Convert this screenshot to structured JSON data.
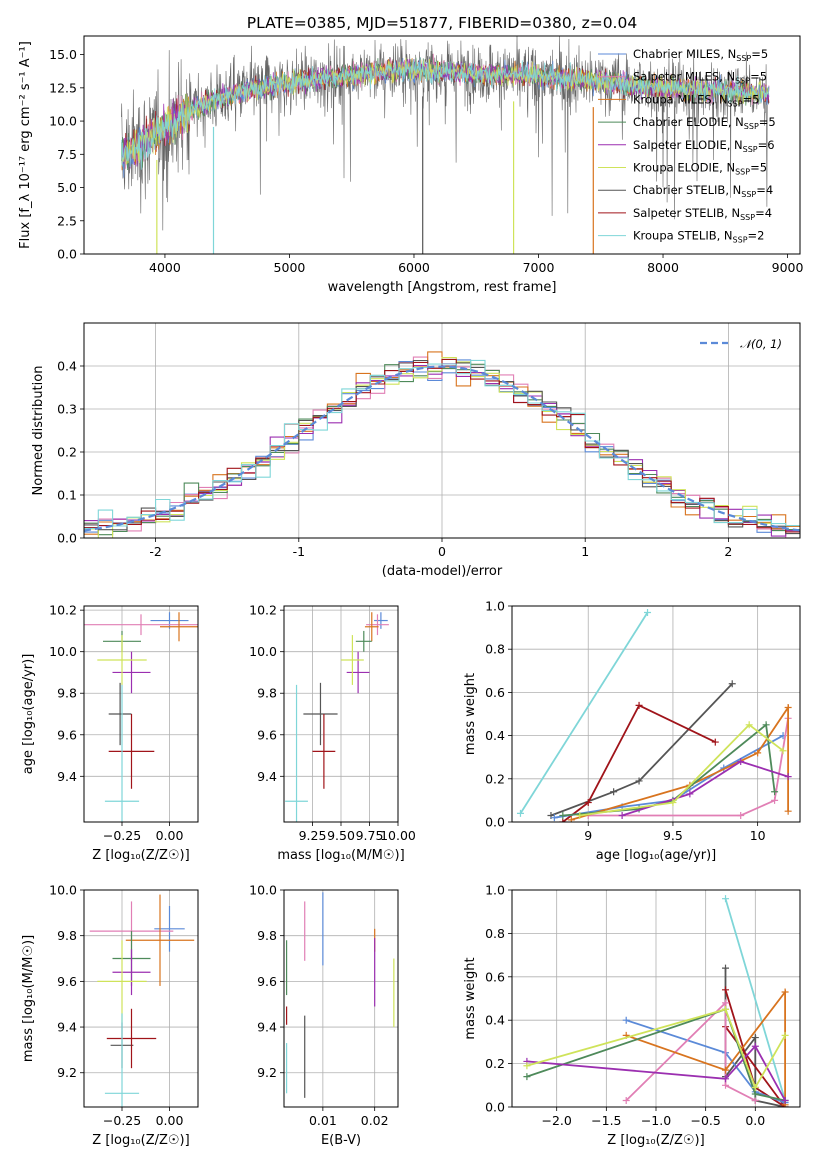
{
  "title": "PLATE=0385, MJD=51877, FIBERID=0380, z=0.04",
  "colors": {
    "chabrier_miles": "#5b8ad8",
    "salpeter_miles": "#e17fb5",
    "kroupa_miles": "#d8741f",
    "chabrier_elodie": "#4e8a5a",
    "salpeter_elodie": "#9b2fb0",
    "kroupa_elodie": "#cfe35a",
    "chabrier_stelib": "#555555",
    "salpeter_stelib": "#a0141a",
    "kroupa_stelib": "#7fd6d8",
    "normal": "#5b8ad8"
  },
  "chart_data": [
    {
      "id": "spectrum",
      "type": "line",
      "xlabel": "wavelength [Angstrom, rest frame]",
      "ylabel": "Flux [f_λ 10⁻¹⁷ erg cm⁻² s⁻¹ A⁻¹]",
      "xlim": [
        3350,
        9100
      ],
      "ylim": [
        0,
        16.4
      ],
      "xticks": [
        4000,
        5000,
        6000,
        7000,
        8000,
        9000
      ],
      "yticks": [
        0.0,
        2.5,
        5.0,
        7.5,
        10.0,
        12.5,
        15.0
      ],
      "grid": false,
      "legend_position": "upper right",
      "legend": [
        {
          "label": "Chabrier MILES, N",
          "sub": "SSP",
          "eq": "=5",
          "color": "chabrier_miles"
        },
        {
          "label": "Salpeter MILES, N",
          "sub": "SSP",
          "eq": "=5",
          "color": "salpeter_miles"
        },
        {
          "label": "Kroupa MILES, N",
          "sub": "SSP",
          "eq": "=5",
          "color": "kroupa_miles"
        },
        {
          "label": "Chabrier ELODIE, N",
          "sub": "SSP",
          "eq": "=5",
          "color": "chabrier_elodie"
        },
        {
          "label": "Salpeter ELODIE, N",
          "sub": "SSP",
          "eq": "=6",
          "color": "salpeter_elodie"
        },
        {
          "label": "Kroupa ELODIE, N",
          "sub": "SSP",
          "eq": "=5",
          "color": "kroupa_elodie"
        },
        {
          "label": "Chabrier STELIB, N",
          "sub": "SSP",
          "eq": "=4",
          "color": "chabrier_stelib"
        },
        {
          "label": "Salpeter STELIB, N",
          "sub": "SSP",
          "eq": "=4",
          "color": "salpeter_stelib"
        },
        {
          "label": "Kroupa STELIB, N",
          "sub": "SSP",
          "eq": "=2",
          "color": "kroupa_stelib"
        }
      ],
      "continuum": [
        [
          3650,
          7.6
        ],
        [
          3800,
          8.2
        ],
        [
          4000,
          9.5
        ],
        [
          4200,
          10.8
        ],
        [
          4400,
          11.6
        ],
        [
          4600,
          12.2
        ],
        [
          4800,
          12.6
        ],
        [
          5000,
          12.9
        ],
        [
          5500,
          13.5
        ],
        [
          6000,
          13.9
        ],
        [
          6500,
          13.6
        ],
        [
          7000,
          13.4
        ],
        [
          7500,
          13.0
        ],
        [
          8000,
          12.5
        ],
        [
          8500,
          12.3
        ],
        [
          8850,
          12.0
        ]
      ],
      "data_range": [
        3650,
        8850
      ],
      "dips": [
        {
          "x": 3935,
          "to": 0,
          "series": "kroupa_elodie"
        },
        {
          "x": 4390,
          "to": 0,
          "series": "kroupa_stelib"
        },
        {
          "x": 6800,
          "to": 0,
          "series": "kroupa_elodie"
        },
        {
          "x": 7440,
          "to": 0,
          "series": "kroupa_miles"
        },
        {
          "x": 6070,
          "to": 0,
          "series": "chabrier_stelib"
        }
      ]
    },
    {
      "id": "residuals",
      "type": "histogram",
      "xlabel": "(data-model)/error",
      "ylabel": "Normed distribution",
      "xlim": [
        -2.5,
        2.5
      ],
      "ylim": [
        0,
        0.5
      ],
      "xticks": [
        -2,
        -1,
        0,
        1,
        2
      ],
      "yticks": [
        0.0,
        0.1,
        0.2,
        0.3,
        0.4
      ],
      "grid": true,
      "bin_width": 0.1,
      "legend_position": "upper right",
      "legend": [
        {
          "label": "𝒩(0, 1)",
          "color": "normal",
          "style": "dashed"
        }
      ],
      "series": [
        "chabrier_miles",
        "salpeter_miles",
        "kroupa_miles",
        "chabrier_elodie",
        "salpeter_elodie",
        "kroupa_elodie",
        "chabrier_stelib",
        "salpeter_stelib",
        "kroupa_stelib"
      ]
    },
    {
      "id": "z_age",
      "type": "errorbar",
      "xlabel": "Z [log₁₀(Z/Z☉)]",
      "ylabel": "age [log₁₀(age/yr)]",
      "xlim": [
        -0.45,
        0.15
      ],
      "ylim": [
        9.18,
        10.22
      ],
      "xticks": [
        -0.25,
        0.0
      ],
      "xticklabels": [
        "−0.25",
        "0.00"
      ],
      "yticks": [
        9.4,
        9.6,
        9.8,
        10.0,
        10.2
      ],
      "grid": true,
      "points": [
        {
          "s": "chabrier_miles",
          "x": 0.0,
          "y": 10.15,
          "xe": 0.1,
          "ye": 0.04
        },
        {
          "s": "salpeter_miles",
          "x": -0.15,
          "y": 10.13,
          "xe": 0.3,
          "ye": 0.05
        },
        {
          "s": "kroupa_miles",
          "x": 0.05,
          "y": 10.12,
          "xe": 0.1,
          "ye": 0.07
        },
        {
          "s": "chabrier_elodie",
          "x": -0.25,
          "y": 10.05,
          "xe": 0.1,
          "ye": 0.05
        },
        {
          "s": "salpeter_elodie",
          "x": -0.2,
          "y": 9.9,
          "xe": 0.1,
          "ye": 0.1
        },
        {
          "s": "kroupa_elodie",
          "x": -0.25,
          "y": 9.96,
          "xe": 0.13,
          "ye": 0.12
        },
        {
          "s": "chabrier_stelib",
          "x": -0.26,
          "y": 9.7,
          "xe": 0.06,
          "ye": 0.15
        },
        {
          "s": "salpeter_stelib",
          "x": -0.2,
          "y": 9.52,
          "xe": 0.12,
          "ye": 0.18
        },
        {
          "s": "kroupa_stelib",
          "x": -0.25,
          "y": 9.28,
          "xe": 0.09,
          "ye": 0.56
        }
      ]
    },
    {
      "id": "mass_age",
      "type": "errorbar",
      "xlabel": "mass [log₁₀(M/M☉)]",
      "ylabel": "",
      "xlim": [
        9.0,
        10.0
      ],
      "ylim": [
        9.18,
        10.22
      ],
      "xticks": [
        9.25,
        9.5,
        9.75,
        10.0
      ],
      "xticklabels": [
        "9.25",
        "9.50",
        "9.75",
        "10.00"
      ],
      "yticks": [
        9.4,
        9.6,
        9.8,
        10.0,
        10.2
      ],
      "grid": true,
      "points": [
        {
          "s": "chabrier_miles",
          "x": 9.85,
          "y": 10.15,
          "xe": 0.06,
          "ye": 0.04
        },
        {
          "s": "salpeter_miles",
          "x": 9.82,
          "y": 10.13,
          "xe": 0.1,
          "ye": 0.05
        },
        {
          "s": "kroupa_miles",
          "x": 9.77,
          "y": 10.12,
          "xe": 0.06,
          "ye": 0.07
        },
        {
          "s": "chabrier_elodie",
          "x": 9.7,
          "y": 10.05,
          "xe": 0.07,
          "ye": 0.05
        },
        {
          "s": "salpeter_elodie",
          "x": 9.65,
          "y": 9.9,
          "xe": 0.1,
          "ye": 0.1
        },
        {
          "s": "kroupa_elodie",
          "x": 9.6,
          "y": 9.96,
          "xe": 0.1,
          "ye": 0.12
        },
        {
          "s": "chabrier_stelib",
          "x": 9.32,
          "y": 9.7,
          "xe": 0.15,
          "ye": 0.15
        },
        {
          "s": "salpeter_stelib",
          "x": 9.35,
          "y": 9.52,
          "xe": 0.1,
          "ye": 0.18
        },
        {
          "s": "kroupa_stelib",
          "x": 9.11,
          "y": 9.28,
          "xe": 0.1,
          "ye": 0.56
        }
      ]
    },
    {
      "id": "age_weight",
      "type": "line",
      "xlabel": "age [log₁₀(age/yr)]",
      "ylabel": "mass weight",
      "xlim": [
        8.55,
        10.25
      ],
      "ylim": [
        0,
        1.0
      ],
      "xticks": [
        9.0,
        9.5,
        10.0
      ],
      "yticks": [
        0.0,
        0.2,
        0.4,
        0.6,
        0.8,
        1.0
      ],
      "grid": true,
      "series": [
        {
          "s": "kroupa_stelib",
          "pts": [
            [
              8.6,
              0.04
            ],
            [
              9.35,
              0.97
            ]
          ]
        },
        {
          "s": "chabrier_stelib",
          "pts": [
            [
              8.78,
              0.03
            ],
            [
              9.15,
              0.14
            ],
            [
              9.3,
              0.19
            ],
            [
              9.85,
              0.64
            ]
          ]
        },
        {
          "s": "salpeter_stelib",
          "pts": [
            [
              8.85,
              0.0
            ],
            [
              9.0,
              0.09
            ],
            [
              9.3,
              0.54
            ],
            [
              9.75,
              0.37
            ]
          ]
        },
        {
          "s": "chabrier_miles",
          "pts": [
            [
              8.8,
              0.02
            ],
            [
              9.2,
              0.07
            ],
            [
              9.5,
              0.1
            ],
            [
              9.8,
              0.25
            ],
            [
              10.15,
              0.4
            ]
          ]
        },
        {
          "s": "salpeter_miles",
          "pts": [
            [
              9.0,
              0.03
            ],
            [
              9.9,
              0.03
            ],
            [
              10.1,
              0.1
            ],
            [
              10.18,
              0.48
            ]
          ]
        },
        {
          "s": "kroupa_miles",
          "pts": [
            [
              8.9,
              0.01
            ],
            [
              9.6,
              0.17
            ],
            [
              10.0,
              0.32
            ],
            [
              10.18,
              0.53
            ],
            [
              10.18,
              0.05
            ]
          ]
        },
        {
          "s": "chabrier_elodie",
          "pts": [
            [
              8.85,
              0.03
            ],
            [
              9.3,
              0.06
            ],
            [
              9.5,
              0.1
            ],
            [
              10.05,
              0.45
            ],
            [
              10.1,
              0.14
            ]
          ]
        },
        {
          "s": "salpeter_elodie",
          "pts": [
            [
              9.2,
              0.03
            ],
            [
              9.6,
              0.13
            ],
            [
              9.9,
              0.28
            ],
            [
              10.18,
              0.21
            ]
          ]
        },
        {
          "s": "kroupa_elodie",
          "pts": [
            [
              8.95,
              0.03
            ],
            [
              9.5,
              0.09
            ],
            [
              9.95,
              0.45
            ],
            [
              10.15,
              0.33
            ]
          ]
        }
      ]
    },
    {
      "id": "z_mass",
      "type": "errorbar",
      "xlabel": "Z [log₁₀(Z/Z☉)]",
      "ylabel": "mass [log₁₀(M/M☉)]",
      "xlim": [
        -0.45,
        0.15
      ],
      "ylim": [
        9.05,
        10.0
      ],
      "xticks": [
        -0.25,
        0.0
      ],
      "xticklabels": [
        "−0.25",
        "0.00"
      ],
      "yticks": [
        9.2,
        9.4,
        9.6,
        9.8,
        10.0
      ],
      "grid": true,
      "points": [
        {
          "s": "chabrier_miles",
          "x": 0.0,
          "y": 9.83,
          "xe": 0.08,
          "ye": 0.1
        },
        {
          "s": "salpeter_miles",
          "x": -0.2,
          "y": 9.82,
          "xe": 0.22,
          "ye": 0.13
        },
        {
          "s": "kroupa_miles",
          "x": -0.05,
          "y": 9.78,
          "xe": 0.18,
          "ye": 0.2
        },
        {
          "s": "chabrier_elodie",
          "x": -0.2,
          "y": 9.7,
          "xe": 0.1,
          "ye": 0.12
        },
        {
          "s": "salpeter_elodie",
          "x": -0.2,
          "y": 9.64,
          "xe": 0.1,
          "ye": 0.1
        },
        {
          "s": "kroupa_elodie",
          "x": -0.25,
          "y": 9.6,
          "xe": 0.13,
          "ye": 0.18
        },
        {
          "s": "chabrier_stelib",
          "x": -0.25,
          "y": 9.32,
          "xe": 0.06,
          "ye": 0.1
        },
        {
          "s": "salpeter_stelib",
          "x": -0.2,
          "y": 9.35,
          "xe": 0.13,
          "ye": 0.13
        },
        {
          "s": "kroupa_stelib",
          "x": -0.25,
          "y": 9.11,
          "xe": 0.09,
          "ye": 0.35
        }
      ]
    },
    {
      "id": "ebv_mass",
      "type": "errorbar",
      "xlabel": "E(B-V)",
      "ylabel": "",
      "xlim": [
        0.0025,
        0.0245
      ],
      "ylim": [
        9.05,
        10.0
      ],
      "xticks": [
        0.01,
        0.02
      ],
      "xticklabels": [
        "0.01",
        "0.02"
      ],
      "yticks": [
        9.2,
        9.4,
        9.6,
        9.8,
        10.0
      ],
      "grid": true,
      "points": [
        {
          "s": "chabrier_miles",
          "x": 0.01,
          "y": 9.83,
          "xe": 0,
          "ye": 0.16
        },
        {
          "s": "salpeter_miles",
          "x": 0.0065,
          "y": 9.82,
          "xe": 0,
          "ye": 0.13
        },
        {
          "s": "kroupa_miles",
          "x": 0.02,
          "y": 9.78,
          "xe": 0,
          "ye": 0.05
        },
        {
          "s": "chabrier_elodie",
          "x": 0.003,
          "y": 9.66,
          "xe": 0,
          "ye": 0.12
        },
        {
          "s": "salpeter_elodie",
          "x": 0.02,
          "y": 9.64,
          "xe": 0,
          "ye": 0.15
        },
        {
          "s": "kroupa_elodie",
          "x": 0.0237,
          "y": 9.55,
          "xe": 0,
          "ye": 0.15
        },
        {
          "s": "chabrier_stelib",
          "x": 0.0065,
          "y": 9.27,
          "xe": 0,
          "ye": 0.18
        },
        {
          "s": "salpeter_stelib",
          "x": 0.003,
          "y": 9.45,
          "xe": 0,
          "ye": 0.04
        },
        {
          "s": "kroupa_stelib",
          "x": 0.003,
          "y": 9.22,
          "xe": 0,
          "ye": 0.11
        }
      ]
    },
    {
      "id": "z_weight",
      "type": "line",
      "xlabel": "Z [log₁₀(Z/Z☉)]",
      "ylabel": "mass weight",
      "xlim": [
        -2.45,
        0.45
      ],
      "ylim": [
        0,
        1.0
      ],
      "xticks": [
        -2.0,
        -1.5,
        -1.0,
        -0.5,
        0.0
      ],
      "xticklabels": [
        "−2.0",
        "−1.5",
        "−1.0",
        "−0.5",
        "0.0"
      ],
      "yticks": [
        0.0,
        0.2,
        0.4,
        0.6,
        0.8,
        1.0
      ],
      "grid": true,
      "series": [
        {
          "s": "kroupa_stelib",
          "pts": [
            [
              -0.3,
              0.96
            ],
            [
              0.3,
              0.03
            ]
          ]
        },
        {
          "s": "chabrier_stelib",
          "pts": [
            [
              -0.3,
              0.64
            ],
            [
              -0.3,
              0.14
            ],
            [
              0.0,
              0.32
            ],
            [
              0.0,
              0.03
            ],
            [
              0.3,
              0.0
            ]
          ]
        },
        {
          "s": "salpeter_stelib",
          "pts": [
            [
              -0.3,
              0.54
            ],
            [
              0.0,
              0.09
            ],
            [
              0.3,
              0.0
            ],
            [
              -0.3,
              0.37
            ]
          ]
        },
        {
          "s": "chabrier_miles",
          "pts": [
            [
              -1.3,
              0.4
            ],
            [
              -0.3,
              0.25
            ],
            [
              0.0,
              0.07
            ],
            [
              0.3,
              0.02
            ]
          ]
        },
        {
          "s": "salpeter_miles",
          "pts": [
            [
              -1.3,
              0.03
            ],
            [
              -0.3,
              0.48
            ],
            [
              -0.3,
              0.1
            ],
            [
              0.0,
              0.03
            ]
          ]
        },
        {
          "s": "kroupa_miles",
          "pts": [
            [
              -1.3,
              0.33
            ],
            [
              -0.3,
              0.17
            ],
            [
              0.3,
              0.53
            ],
            [
              0.3,
              0.01
            ]
          ]
        },
        {
          "s": "chabrier_elodie",
          "pts": [
            [
              -2.3,
              0.14
            ],
            [
              -0.3,
              0.45
            ],
            [
              0.0,
              0.06
            ],
            [
              0.3,
              0.03
            ]
          ]
        },
        {
          "s": "salpeter_elodie",
          "pts": [
            [
              -2.3,
              0.21
            ],
            [
              -0.3,
              0.13
            ],
            [
              0.0,
              0.28
            ],
            [
              0.3,
              0.03
            ]
          ]
        },
        {
          "s": "kroupa_elodie",
          "pts": [
            [
              -2.3,
              0.19
            ],
            [
              -0.3,
              0.45
            ],
            [
              0.0,
              0.09
            ],
            [
              0.3,
              0.33
            ]
          ]
        }
      ]
    }
  ]
}
